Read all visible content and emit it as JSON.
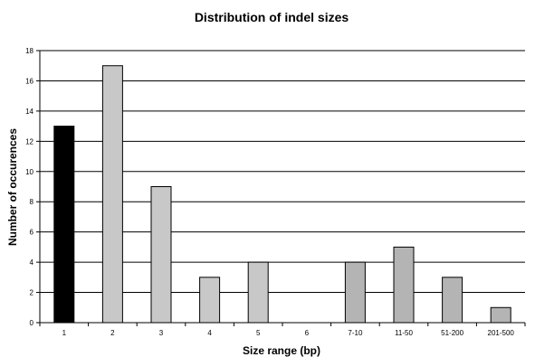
{
  "chart_data": {
    "type": "bar",
    "title": "Distribution of indel sizes",
    "xlabel": "Size range (bp)",
    "ylabel": "Number of occurences",
    "categories": [
      "1",
      "2",
      "3",
      "4",
      "5",
      "6",
      "7-10",
      "11-50",
      "51-200",
      "201-500"
    ],
    "values": [
      13,
      17,
      9,
      3,
      4,
      0,
      4,
      5,
      3,
      1
    ],
    "bar_colors": [
      "#000000",
      "#c8c8c8",
      "#c8c8c8",
      "#c8c8c8",
      "#c8c8c8",
      "#c8c8c8",
      "#b4b4b4",
      "#b4b4b4",
      "#b4b4b4",
      "#b4b4b4"
    ],
    "ylim": [
      0,
      18
    ],
    "yticks": [
      0,
      2,
      4,
      6,
      8,
      10,
      12,
      14,
      16,
      18
    ],
    "grid": true,
    "legend": "none"
  }
}
